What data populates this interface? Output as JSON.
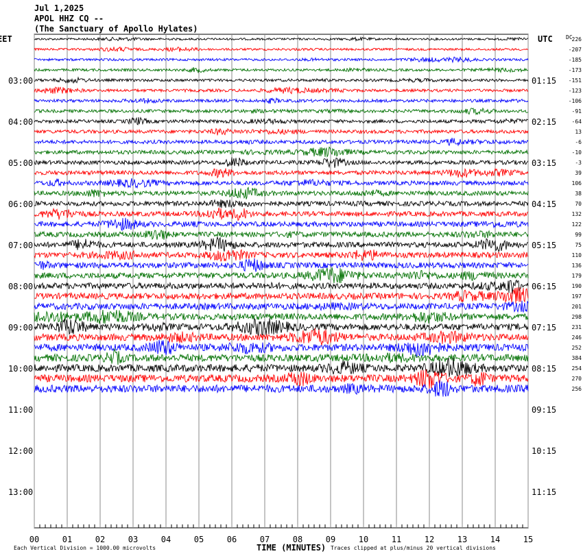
{
  "header": {
    "date": "Jul 1,2025",
    "station": "APOL HHZ CQ --",
    "location": "(The Sanctuary of Apollo Hylates)"
  },
  "left_axis": {
    "title": "EET",
    "labels": [
      "03:00",
      "04:00",
      "05:00",
      "06:00",
      "07:00",
      "08:00",
      "09:00",
      "10:00",
      "11:00",
      "12:00",
      "13:00"
    ]
  },
  "right_axis": {
    "title": "UTC",
    "labels": [
      "01:15",
      "02:15",
      "03:15",
      "04:15",
      "05:15",
      "06:15",
      "07:15",
      "08:15",
      "09:15",
      "10:15",
      "11:15"
    ]
  },
  "dc_title": "DC",
  "dc_offsets": [
    226,
    -207,
    -185,
    -173,
    -151,
    -123,
    -106,
    -91,
    -64,
    13,
    -6,
    -10,
    -3,
    39,
    106,
    38,
    70,
    132,
    122,
    99,
    75,
    110,
    136,
    179,
    190,
    197,
    201,
    298,
    231,
    246,
    252,
    384,
    254,
    270,
    256
  ],
  "trace_colors": [
    "#000000",
    "#ff0000",
    "#0000ff",
    "#007000"
  ],
  "x_axis": {
    "title": "TIME (MINUTES)",
    "labels": [
      "00",
      "01",
      "02",
      "03",
      "04",
      "05",
      "06",
      "07",
      "08",
      "09",
      "10",
      "11",
      "12",
      "13",
      "14",
      "15"
    ]
  },
  "footer": {
    "scale": "Each Vertical Division = 1000.00 microvolts",
    "clip": "Traces clipped at plus/minus 20 vertical divisions"
  }
}
